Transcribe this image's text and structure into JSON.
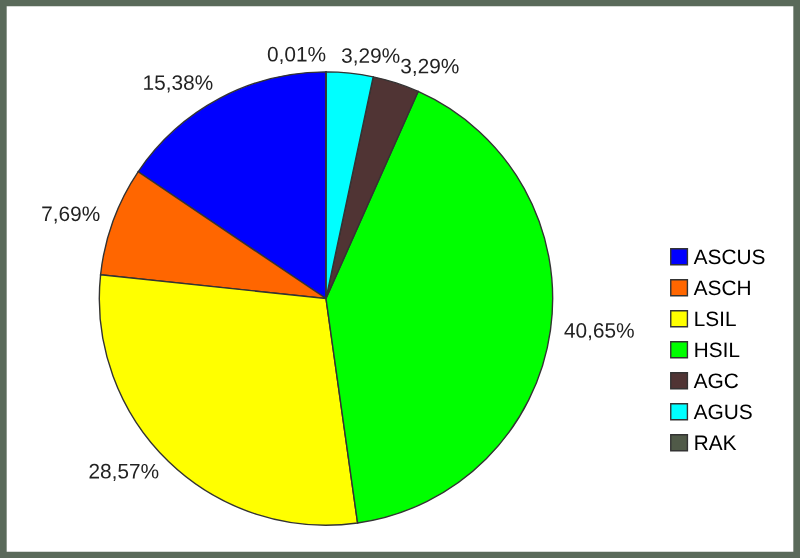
{
  "chart_data": {
    "type": "pie",
    "categories": [
      "ASCUS",
      "ASCH",
      "LSIL",
      "HSIL",
      "AGC",
      "AGUS",
      "RAK"
    ],
    "values": [
      15.38,
      7.69,
      28.57,
      40.65,
      3.29,
      3.29,
      0.01
    ],
    "colors": [
      "#0000ff",
      "#ff6600",
      "#ffff00",
      "#00ff00",
      "#503434",
      "#00ffff",
      "#505a48"
    ],
    "value_labels": [
      "15,38%",
      "7,69%",
      "28,57%",
      "40,65%",
      "3,29%",
      "3,29%",
      "0,01%"
    ],
    "legend": "right"
  }
}
